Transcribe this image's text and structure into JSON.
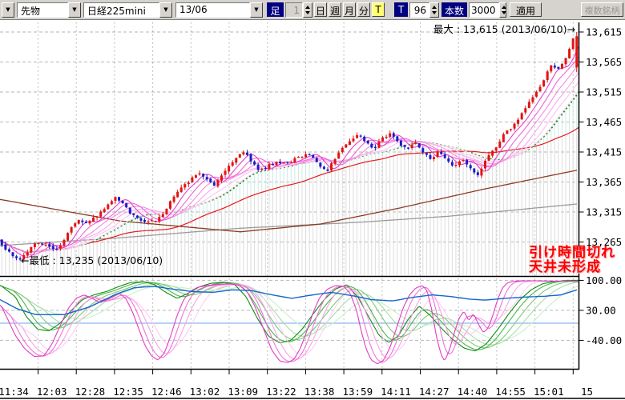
{
  "toolbar": {
    "mini_combo_arrow": "▼",
    "market": "先物",
    "symbol": "日経225mini",
    "contract": "13/06",
    "ashi_label": "足",
    "ashi_value": "1",
    "period_buttons": [
      "日",
      "週",
      "月",
      "分"
    ],
    "tick_toggle": "T",
    "tick_label": "T",
    "tick_value": "96",
    "count_label": "本数",
    "count_value": "3000",
    "apply_button": "適用",
    "multi_symbol_button": "複数銘柄"
  },
  "chart_data": {
    "type": "candlestick",
    "symbol": "日経225mini 13/06",
    "session_date": "2013/06/10",
    "max_annotation": "最大 : 13,615 (2013/06/10)→",
    "min_annotation": "←最低 : 13,235 (2013/06/10)",
    "note_lines": [
      "引け時間切れ",
      "天井未形成"
    ],
    "note_color": "#fb0000",
    "note_shadow": "#ffb6b6",
    "high_point": {
      "price": 13615,
      "date": "2013/06/10"
    },
    "low_point": {
      "price": 13235,
      "date": "2013/06/10"
    },
    "price_axis": {
      "ticks": [
        "13,615",
        "13,565",
        "13,515",
        "13,465",
        "13,415",
        "13,365",
        "13,315",
        "13,265"
      ],
      "values": [
        13615,
        13565,
        13515,
        13465,
        13415,
        13365,
        13315,
        13265
      ]
    },
    "osc_axis": {
      "ticks": [
        "100.00",
        "30.00",
        "-40.00"
      ],
      "values": [
        100,
        30,
        -40
      ]
    },
    "time_labels": [
      "11:34",
      "12:03",
      "12:28",
      "12:35",
      "12:46",
      "13:02",
      "13:09",
      "13:22",
      "13:38",
      "13:59",
      "14:11",
      "14:27",
      "14:40",
      "14:55",
      "15:01",
      "15"
    ],
    "candle_up_color": "#e31212",
    "candle_down_color": "#1c1cc8",
    "grid_color": "#b6b6b6",
    "axis_color": "#000000",
    "price_anchors": [
      [
        0,
        13268
      ],
      [
        12,
        13250
      ],
      [
        22,
        13242
      ],
      [
        30,
        13236
      ],
      [
        40,
        13252
      ],
      [
        52,
        13266
      ],
      [
        62,
        13260
      ],
      [
        72,
        13252
      ],
      [
        82,
        13263
      ],
      [
        95,
        13292
      ],
      [
        105,
        13302
      ],
      [
        115,
        13296
      ],
      [
        126,
        13310
      ],
      [
        140,
        13326
      ],
      [
        150,
        13340
      ],
      [
        158,
        13330
      ],
      [
        168,
        13312
      ],
      [
        178,
        13305
      ],
      [
        188,
        13297
      ],
      [
        198,
        13301
      ],
      [
        210,
        13316
      ],
      [
        225,
        13348
      ],
      [
        240,
        13366
      ],
      [
        252,
        13382
      ],
      [
        262,
        13371
      ],
      [
        272,
        13361
      ],
      [
        282,
        13378
      ],
      [
        295,
        13398
      ],
      [
        308,
        13416
      ],
      [
        318,
        13400
      ],
      [
        328,
        13383
      ],
      [
        338,
        13391
      ],
      [
        350,
        13400
      ],
      [
        362,
        13396
      ],
      [
        372,
        13403
      ],
      [
        382,
        13409
      ],
      [
        392,
        13413
      ],
      [
        402,
        13393
      ],
      [
        412,
        13383
      ],
      [
        422,
        13401
      ],
      [
        432,
        13421
      ],
      [
        442,
        13433
      ],
      [
        452,
        13443
      ],
      [
        462,
        13431
      ],
      [
        472,
        13421
      ],
      [
        482,
        13439
      ],
      [
        492,
        13447
      ],
      [
        502,
        13429
      ],
      [
        512,
        13419
      ],
      [
        522,
        13433
      ],
      [
        532,
        13416
      ],
      [
        542,
        13403
      ],
      [
        552,
        13415
      ],
      [
        562,
        13399
      ],
      [
        572,
        13391
      ],
      [
        582,
        13405
      ],
      [
        592,
        13389
      ],
      [
        600,
        13377
      ],
      [
        608,
        13393
      ],
      [
        616,
        13413
      ],
      [
        624,
        13425
      ],
      [
        632,
        13441
      ],
      [
        640,
        13453
      ],
      [
        648,
        13463
      ],
      [
        656,
        13479
      ],
      [
        664,
        13495
      ],
      [
        672,
        13511
      ],
      [
        680,
        13529
      ],
      [
        688,
        13549
      ],
      [
        694,
        13561
      ],
      [
        700,
        13549
      ],
      [
        706,
        13563
      ],
      [
        712,
        13577
      ],
      [
        717,
        13592
      ],
      [
        722,
        13612
      ]
    ],
    "last_candle": {
      "open": 13556,
      "close": 13608,
      "high": 13615,
      "low": 13548
    },
    "overlay": {
      "ribbon_windows": [
        12,
        28,
        44,
        60,
        76,
        92
      ],
      "ribbon_colors": [
        "#e63ecb",
        "#ee66d6",
        "#f48ae0",
        "#f9a8e9",
        "#fcc3f0",
        "#ffd9f6"
      ],
      "green_window": 95,
      "green_color": "#159015",
      "red_window": 210,
      "red_color": "#e81818",
      "brown_color": "#8a3a22",
      "brown_anchors": [
        [
          0,
          13336
        ],
        [
          150,
          13300
        ],
        [
          300,
          13282
        ],
        [
          400,
          13295
        ],
        [
          500,
          13322
        ],
        [
          600,
          13352
        ],
        [
          725,
          13386
        ]
      ],
      "gray_color": "#9b9b9b",
      "gray_anchors": [
        [
          0,
          13259
        ],
        [
          150,
          13272
        ],
        [
          300,
          13288
        ],
        [
          450,
          13298
        ],
        [
          560,
          13308
        ],
        [
          640,
          13318
        ],
        [
          725,
          13329
        ]
      ],
      "fill_upper_color": "#cdeae6",
      "fill_lower_color": "#dcdcdc"
    },
    "oscillator": {
      "zero_line_color": "#8ab8f0",
      "blue_color": "#1566cc",
      "blue_anchors": [
        [
          0,
          55
        ],
        [
          22,
          33
        ],
        [
          45,
          20
        ],
        [
          80,
          20
        ],
        [
          112,
          38
        ],
        [
          145,
          68
        ],
        [
          168,
          83
        ],
        [
          192,
          86
        ],
        [
          214,
          80
        ],
        [
          240,
          74
        ],
        [
          266,
          72
        ],
        [
          290,
          78
        ],
        [
          314,
          76
        ],
        [
          340,
          66
        ],
        [
          364,
          58
        ],
        [
          390,
          66
        ],
        [
          414,
          72
        ],
        [
          440,
          64
        ],
        [
          464,
          55
        ],
        [
          490,
          52
        ],
        [
          514,
          60
        ],
        [
          540,
          66
        ],
        [
          564,
          62
        ],
        [
          586,
          56
        ],
        [
          606,
          54
        ],
        [
          630,
          58
        ],
        [
          655,
          61
        ],
        [
          680,
          63
        ],
        [
          700,
          66
        ],
        [
          722,
          79
        ]
      ],
      "green_colors": [
        "#0e8c0e",
        "#49b649",
        "#7bcb7b",
        "#a5dea5",
        "#c9efc9"
      ],
      "green_windows": [
        2,
        16,
        34,
        54,
        78
      ],
      "green_anchors": [
        [
          0,
          88
        ],
        [
          18,
          62
        ],
        [
          32,
          15
        ],
        [
          46,
          -14
        ],
        [
          60,
          -18
        ],
        [
          74,
          0
        ],
        [
          88,
          30
        ],
        [
          102,
          55
        ],
        [
          116,
          66
        ],
        [
          132,
          74
        ],
        [
          148,
          86
        ],
        [
          162,
          95
        ],
        [
          178,
          97
        ],
        [
          192,
          90
        ],
        [
          206,
          72
        ],
        [
          220,
          58
        ],
        [
          234,
          70
        ],
        [
          248,
          85
        ],
        [
          262,
          93
        ],
        [
          278,
          96
        ],
        [
          292,
          90
        ],
        [
          306,
          62
        ],
        [
          320,
          12
        ],
        [
          334,
          -30
        ],
        [
          348,
          -46
        ],
        [
          362,
          -40
        ],
        [
          376,
          -14
        ],
        [
          390,
          22
        ],
        [
          404,
          56
        ],
        [
          418,
          80
        ],
        [
          432,
          90
        ],
        [
          446,
          60
        ],
        [
          460,
          12
        ],
        [
          472,
          -28
        ],
        [
          484,
          -45
        ],
        [
          496,
          -30
        ],
        [
          508,
          8
        ],
        [
          522,
          40
        ],
        [
          536,
          18
        ],
        [
          550,
          -12
        ],
        [
          564,
          -38
        ],
        [
          578,
          -58
        ],
        [
          592,
          -65
        ],
        [
          606,
          -48
        ],
        [
          620,
          -15
        ],
        [
          634,
          22
        ],
        [
          648,
          55
        ],
        [
          662,
          78
        ],
        [
          676,
          92
        ],
        [
          690,
          97
        ],
        [
          704,
          100
        ],
        [
          722,
          100
        ]
      ],
      "pink_colors": [
        "#e23cc3",
        "#ef72d6",
        "#f7a3e6",
        "#ffcdf2"
      ],
      "pink_windows": [
        2,
        14,
        28,
        44
      ],
      "pink_anchors": [
        [
          0,
          42
        ],
        [
          8,
          12
        ],
        [
          18,
          -28
        ],
        [
          30,
          -60
        ],
        [
          42,
          -78
        ],
        [
          54,
          -76
        ],
        [
          64,
          -48
        ],
        [
          74,
          -6
        ],
        [
          84,
          34
        ],
        [
          94,
          58
        ],
        [
          104,
          66
        ],
        [
          114,
          58
        ],
        [
          124,
          48
        ],
        [
          136,
          58
        ],
        [
          148,
          70
        ],
        [
          156,
          58
        ],
        [
          164,
          28
        ],
        [
          172,
          -12
        ],
        [
          180,
          -52
        ],
        [
          188,
          -76
        ],
        [
          196,
          -86
        ],
        [
          204,
          -70
        ],
        [
          212,
          -30
        ],
        [
          220,
          18
        ],
        [
          228,
          54
        ],
        [
          236,
          74
        ],
        [
          246,
          84
        ],
        [
          258,
          88
        ],
        [
          272,
          91
        ],
        [
          286,
          92
        ],
        [
          298,
          88
        ],
        [
          308,
          72
        ],
        [
          318,
          36
        ],
        [
          328,
          -14
        ],
        [
          338,
          -62
        ],
        [
          348,
          -88
        ],
        [
          358,
          -92
        ],
        [
          366,
          -84
        ],
        [
          374,
          -58
        ],
        [
          382,
          -18
        ],
        [
          390,
          26
        ],
        [
          398,
          60
        ],
        [
          408,
          80
        ],
        [
          418,
          88
        ],
        [
          428,
          86
        ],
        [
          436,
          70
        ],
        [
          444,
          30
        ],
        [
          450,
          -20
        ],
        [
          456,
          -60
        ],
        [
          462,
          -85
        ],
        [
          470,
          -95
        ],
        [
          478,
          -86
        ],
        [
          486,
          -55
        ],
        [
          494,
          -10
        ],
        [
          502,
          35
        ],
        [
          510,
          66
        ],
        [
          518,
          82
        ],
        [
          526,
          88
        ],
        [
          532,
          76
        ],
        [
          538,
          30
        ],
        [
          544,
          -35
        ],
        [
          550,
          -76
        ],
        [
          554,
          -88
        ],
        [
          560,
          -62
        ],
        [
          566,
          -22
        ],
        [
          572,
          12
        ],
        [
          578,
          28
        ],
        [
          584,
          6
        ],
        [
          590,
          22
        ],
        [
          596,
          -2
        ],
        [
          602,
          -22
        ],
        [
          608,
          -12
        ],
        [
          614,
          18
        ],
        [
          620,
          55
        ],
        [
          626,
          82
        ],
        [
          632,
          94
        ],
        [
          640,
          98
        ],
        [
          652,
          99
        ],
        [
          668,
          99
        ],
        [
          684,
          98
        ],
        [
          700,
          98
        ],
        [
          722,
          97
        ]
      ]
    }
  }
}
